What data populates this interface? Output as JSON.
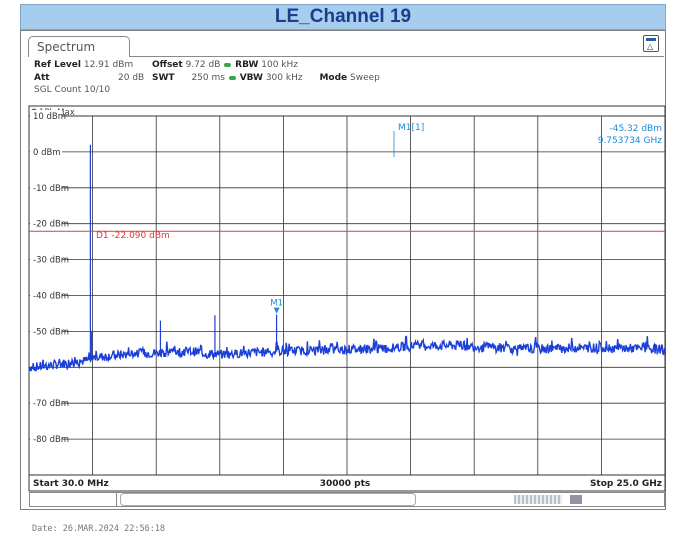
{
  "window": {
    "title": "LE_Channel 19"
  },
  "tab": {
    "label": "Spectrum"
  },
  "settings": {
    "ref_level_label": "Ref Level",
    "ref_level_value": "12.91 dBm",
    "offset_label": "Offset",
    "offset_value": "9.72 dB",
    "rbw_label": "RBW",
    "rbw_value": "100 kHz",
    "att_label": "Att",
    "att_value": "20 dB",
    "swt_label": "SWT",
    "swt_value": "250 ms",
    "vbw_label": "VBW",
    "vbw_value": "300 kHz",
    "mode_label": "Mode",
    "mode_value": "Sweep",
    "sgl_count": "SGL Count 10/10"
  },
  "footer": {
    "date": "Date: 26.MAR.2024  22:56:18"
  },
  "colors": {
    "trace": "#1b3fd8",
    "display_line": "#e23a3a",
    "marker": "#1f8ad6",
    "grid": "#333333",
    "title_bg": "#a7cdee",
    "title_text": "#1a3e8c"
  },
  "chart_data": {
    "type": "line",
    "trace_label": "1Pk Max",
    "y_unit": "dBm",
    "ylim": [
      -90,
      10
    ],
    "xlim_ghz": [
      0.03,
      25.0
    ],
    "y_ticks": [
      10,
      0,
      -10,
      -20,
      -30,
      -40,
      -50,
      -70,
      -80
    ],
    "y_tick_labels": [
      "10 dBm",
      "0 dBm",
      "-10 dBm",
      "-20 dBm",
      "-30 dBm",
      "-40 dBm",
      "-50 dBm",
      "-70 dBm",
      "-80 dBm"
    ],
    "grid": true,
    "x_start_label": "Start 30.0 MHz",
    "x_stop_label": "Stop 25.0 GHz",
    "points_label": "30000 pts",
    "display_line": {
      "label": "D1",
      "value_label": "-22.090 dBm",
      "value": -22.09
    },
    "marker": {
      "name": "M1",
      "readout_name": "M1[1]",
      "x_ghz": 9.753734,
      "y_dbm": -45.32,
      "value_label": "-45.32 dBm",
      "freq_label": "9.753734 GHz"
    },
    "trace": {
      "x_ghz": [
        0.03,
        0.5,
        1.0,
        1.5,
        2.0,
        2.44,
        2.5,
        3.0,
        3.5,
        4.0,
        4.5,
        5.0,
        5.5,
        6.0,
        6.5,
        7.0,
        7.5,
        8.0,
        8.5,
        9.0,
        9.5,
        10.0,
        10.5,
        11.0,
        11.5,
        12.0,
        12.5,
        13.0,
        13.5,
        14.0,
        14.5,
        15.0,
        15.5,
        16.0,
        16.5,
        17.0,
        17.5,
        18.0,
        18.5,
        19.0,
        19.5,
        20.0,
        20.5,
        21.0,
        21.5,
        22.0,
        22.5,
        23.0,
        23.5,
        24.0,
        24.5,
        25.0
      ],
      "y_dbm": [
        -60.0,
        -59.8,
        -59.3,
        -58.8,
        -58.4,
        -58.0,
        -57.4,
        -56.9,
        -56.6,
        -56.3,
        -56.1,
        -56.0,
        -55.8,
        -55.6,
        -55.6,
        -56.1,
        -56.4,
        -56.3,
        -56.0,
        -55.8,
        -55.7,
        -55.5,
        -55.4,
        -55.3,
        -55.2,
        -55.2,
        -55.0,
        -55.0,
        -54.9,
        -54.8,
        -54.4,
        -54.1,
        -54.0,
        -54.0,
        -53.9,
        -54.0,
        -54.2,
        -54.4,
        -54.6,
        -54.9,
        -55.0,
        -54.9,
        -54.8,
        -54.7,
        -54.6,
        -54.6,
        -54.5,
        -54.6,
        -54.7,
        -54.8,
        -54.9,
        -55.0
      ]
    },
    "spurs": [
      {
        "x_ghz": 2.44,
        "y_dbm": 2.0
      },
      {
        "x_ghz": 2.49,
        "y_dbm": -50.0
      },
      {
        "x_ghz": 5.19,
        "y_dbm": -47.0
      },
      {
        "x_ghz": 7.33,
        "y_dbm": -45.5
      },
      {
        "x_ghz": 9.75,
        "y_dbm": -45.32
      }
    ]
  }
}
